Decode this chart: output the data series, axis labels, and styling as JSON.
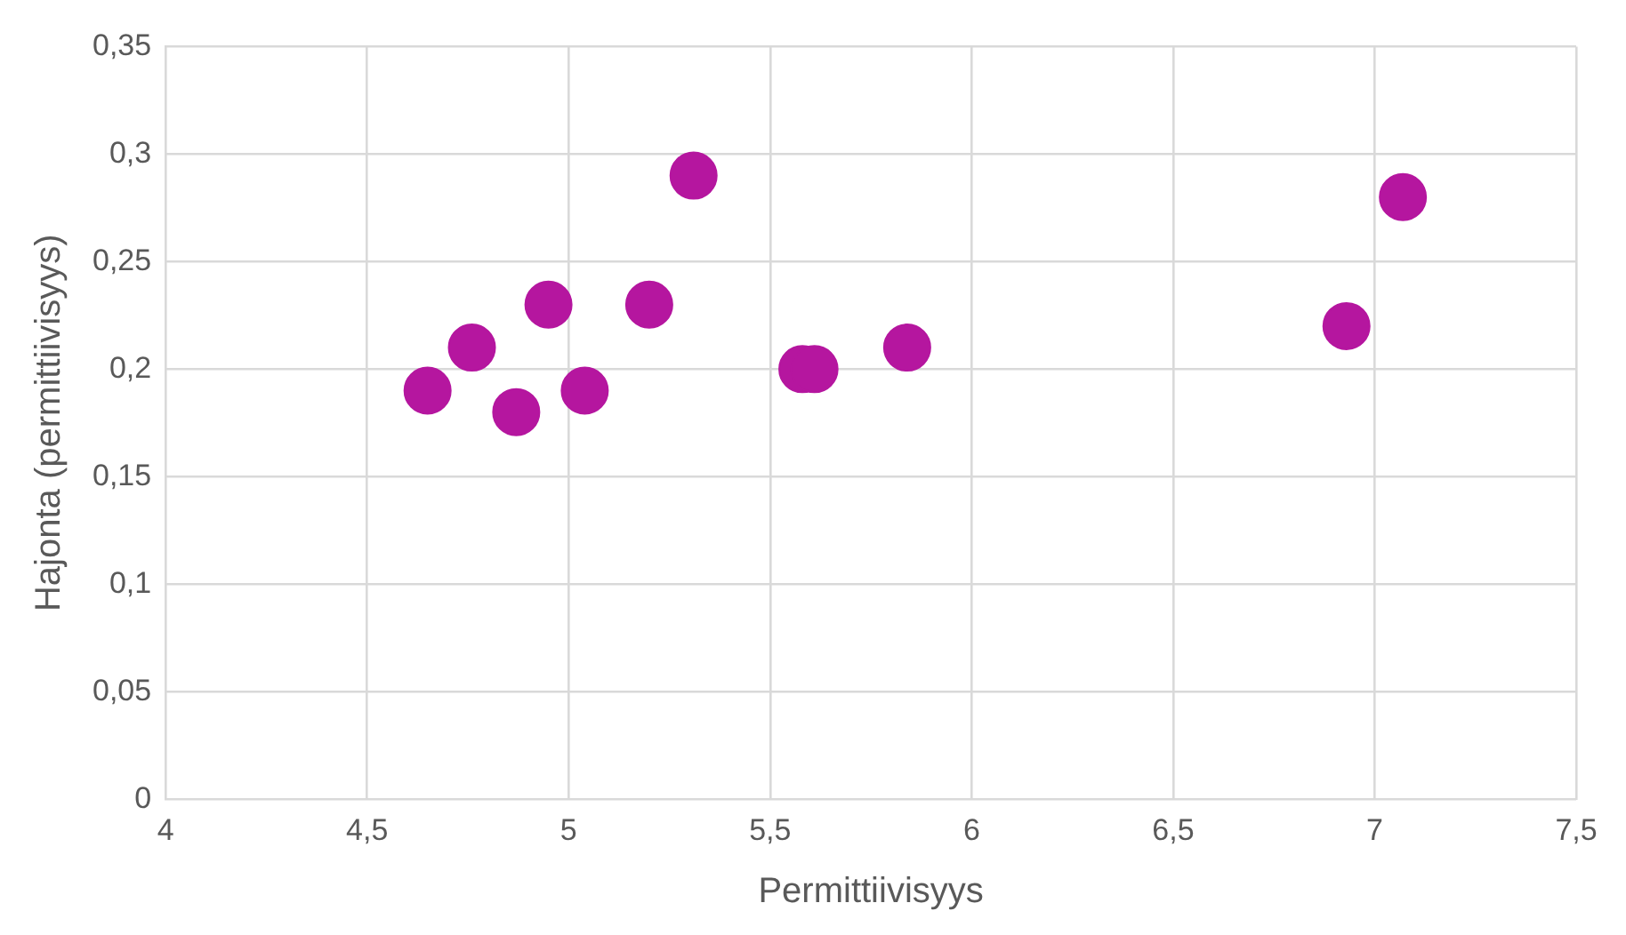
{
  "chart_data": {
    "type": "scatter",
    "xlabel": "Permittiivisyys",
    "ylabel": "Hajonta (permittiivisyys)",
    "x": [
      4.65,
      4.76,
      4.87,
      4.95,
      5.04,
      5.2,
      5.31,
      5.58,
      5.61,
      5.84,
      6.93,
      7.07
    ],
    "series": [
      {
        "color": "#b5169f",
        "values": [
          0.19,
          0.21,
          0.18,
          0.23,
          0.19,
          0.23,
          0.29,
          0.2,
          0.2,
          0.21,
          0.22,
          0.28
        ]
      }
    ],
    "xlim": [
      4,
      7.5
    ],
    "ylim": [
      0,
      0.35
    ],
    "xticks": [
      4,
      {
        "value": 4.5,
        "label": "4,5"
      },
      5,
      {
        "value": 5.5,
        "label": "5,5"
      },
      6,
      {
        "value": 6.5,
        "label": "6,5"
      },
      7,
      {
        "value": 7.5,
        "label": "7,5"
      }
    ],
    "yticks": [
      0,
      {
        "value": 0.05,
        "label": "0,05"
      },
      {
        "value": 0.1,
        "label": "0,1"
      },
      {
        "value": 0.15,
        "label": "0,15"
      },
      {
        "value": 0.2,
        "label": "0,2"
      },
      {
        "value": 0.25,
        "label": "0,25"
      },
      {
        "value": 0.3,
        "label": "0,3"
      },
      {
        "value": 0.35,
        "label": "0,35"
      }
    ],
    "grid": true,
    "legend": false,
    "marker": "circle"
  }
}
